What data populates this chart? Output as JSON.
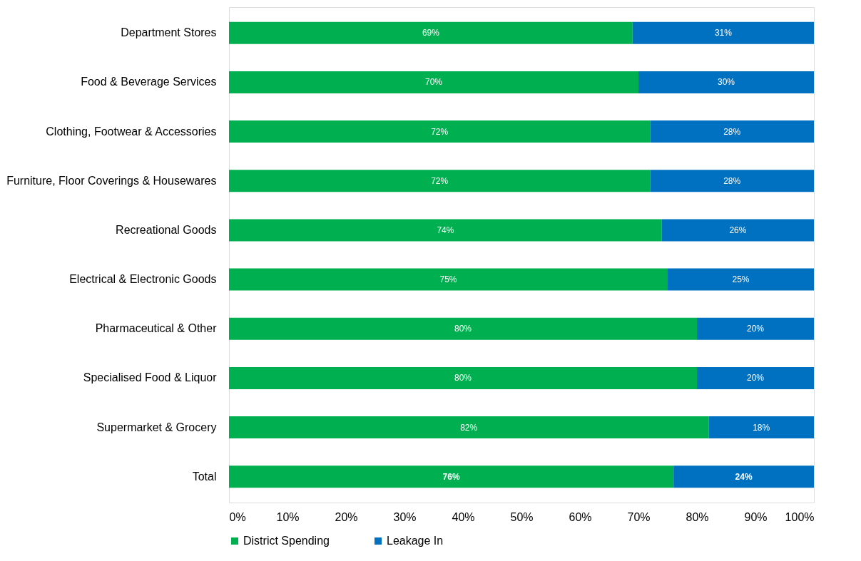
{
  "chart_data": {
    "type": "bar",
    "orientation": "horizontal",
    "stacked": true,
    "categories": [
      "Department Stores",
      "Food & Beverage Services",
      "Clothing, Footwear & Accessories",
      "Furniture, Floor Coverings & Housewares",
      "Recreational Goods",
      "Electrical & Electronic Goods",
      "Pharmaceutical & Other",
      "Specialised Food & Liquor",
      "Supermarket & Grocery",
      "Total"
    ],
    "series": [
      {
        "name": "District Spending",
        "color": "#00b050",
        "values": [
          69,
          70,
          72,
          72,
          74,
          75,
          80,
          80,
          82,
          76
        ],
        "value_labels": [
          "69%",
          "70%",
          "72%",
          "72%",
          "74%",
          "75%",
          "80%",
          "80%",
          "82%",
          "76%"
        ]
      },
      {
        "name": "Leakage In",
        "color": "#0070c0",
        "values": [
          31,
          30,
          28,
          28,
          26,
          25,
          20,
          20,
          18,
          24
        ],
        "value_labels": [
          "31%",
          "30%",
          "28%",
          "28%",
          "26%",
          "25%",
          "20%",
          "20%",
          "18%",
          "24%"
        ]
      }
    ],
    "xlim": [
      0,
      100
    ],
    "xticks": [
      {
        "value": 0,
        "label": "0%"
      },
      {
        "value": 10,
        "label": "10%"
      },
      {
        "value": 20,
        "label": "20%"
      },
      {
        "value": 30,
        "label": "30%"
      },
      {
        "value": 40,
        "label": "40%"
      },
      {
        "value": 50,
        "label": "50%"
      },
      {
        "value": 60,
        "label": "60%"
      },
      {
        "value": 70,
        "label": "70%"
      },
      {
        "value": 80,
        "label": "80%"
      },
      {
        "value": 90,
        "label": "90%"
      },
      {
        "value": 100,
        "label": "100%"
      }
    ],
    "grid": false,
    "legend": "bottom"
  }
}
